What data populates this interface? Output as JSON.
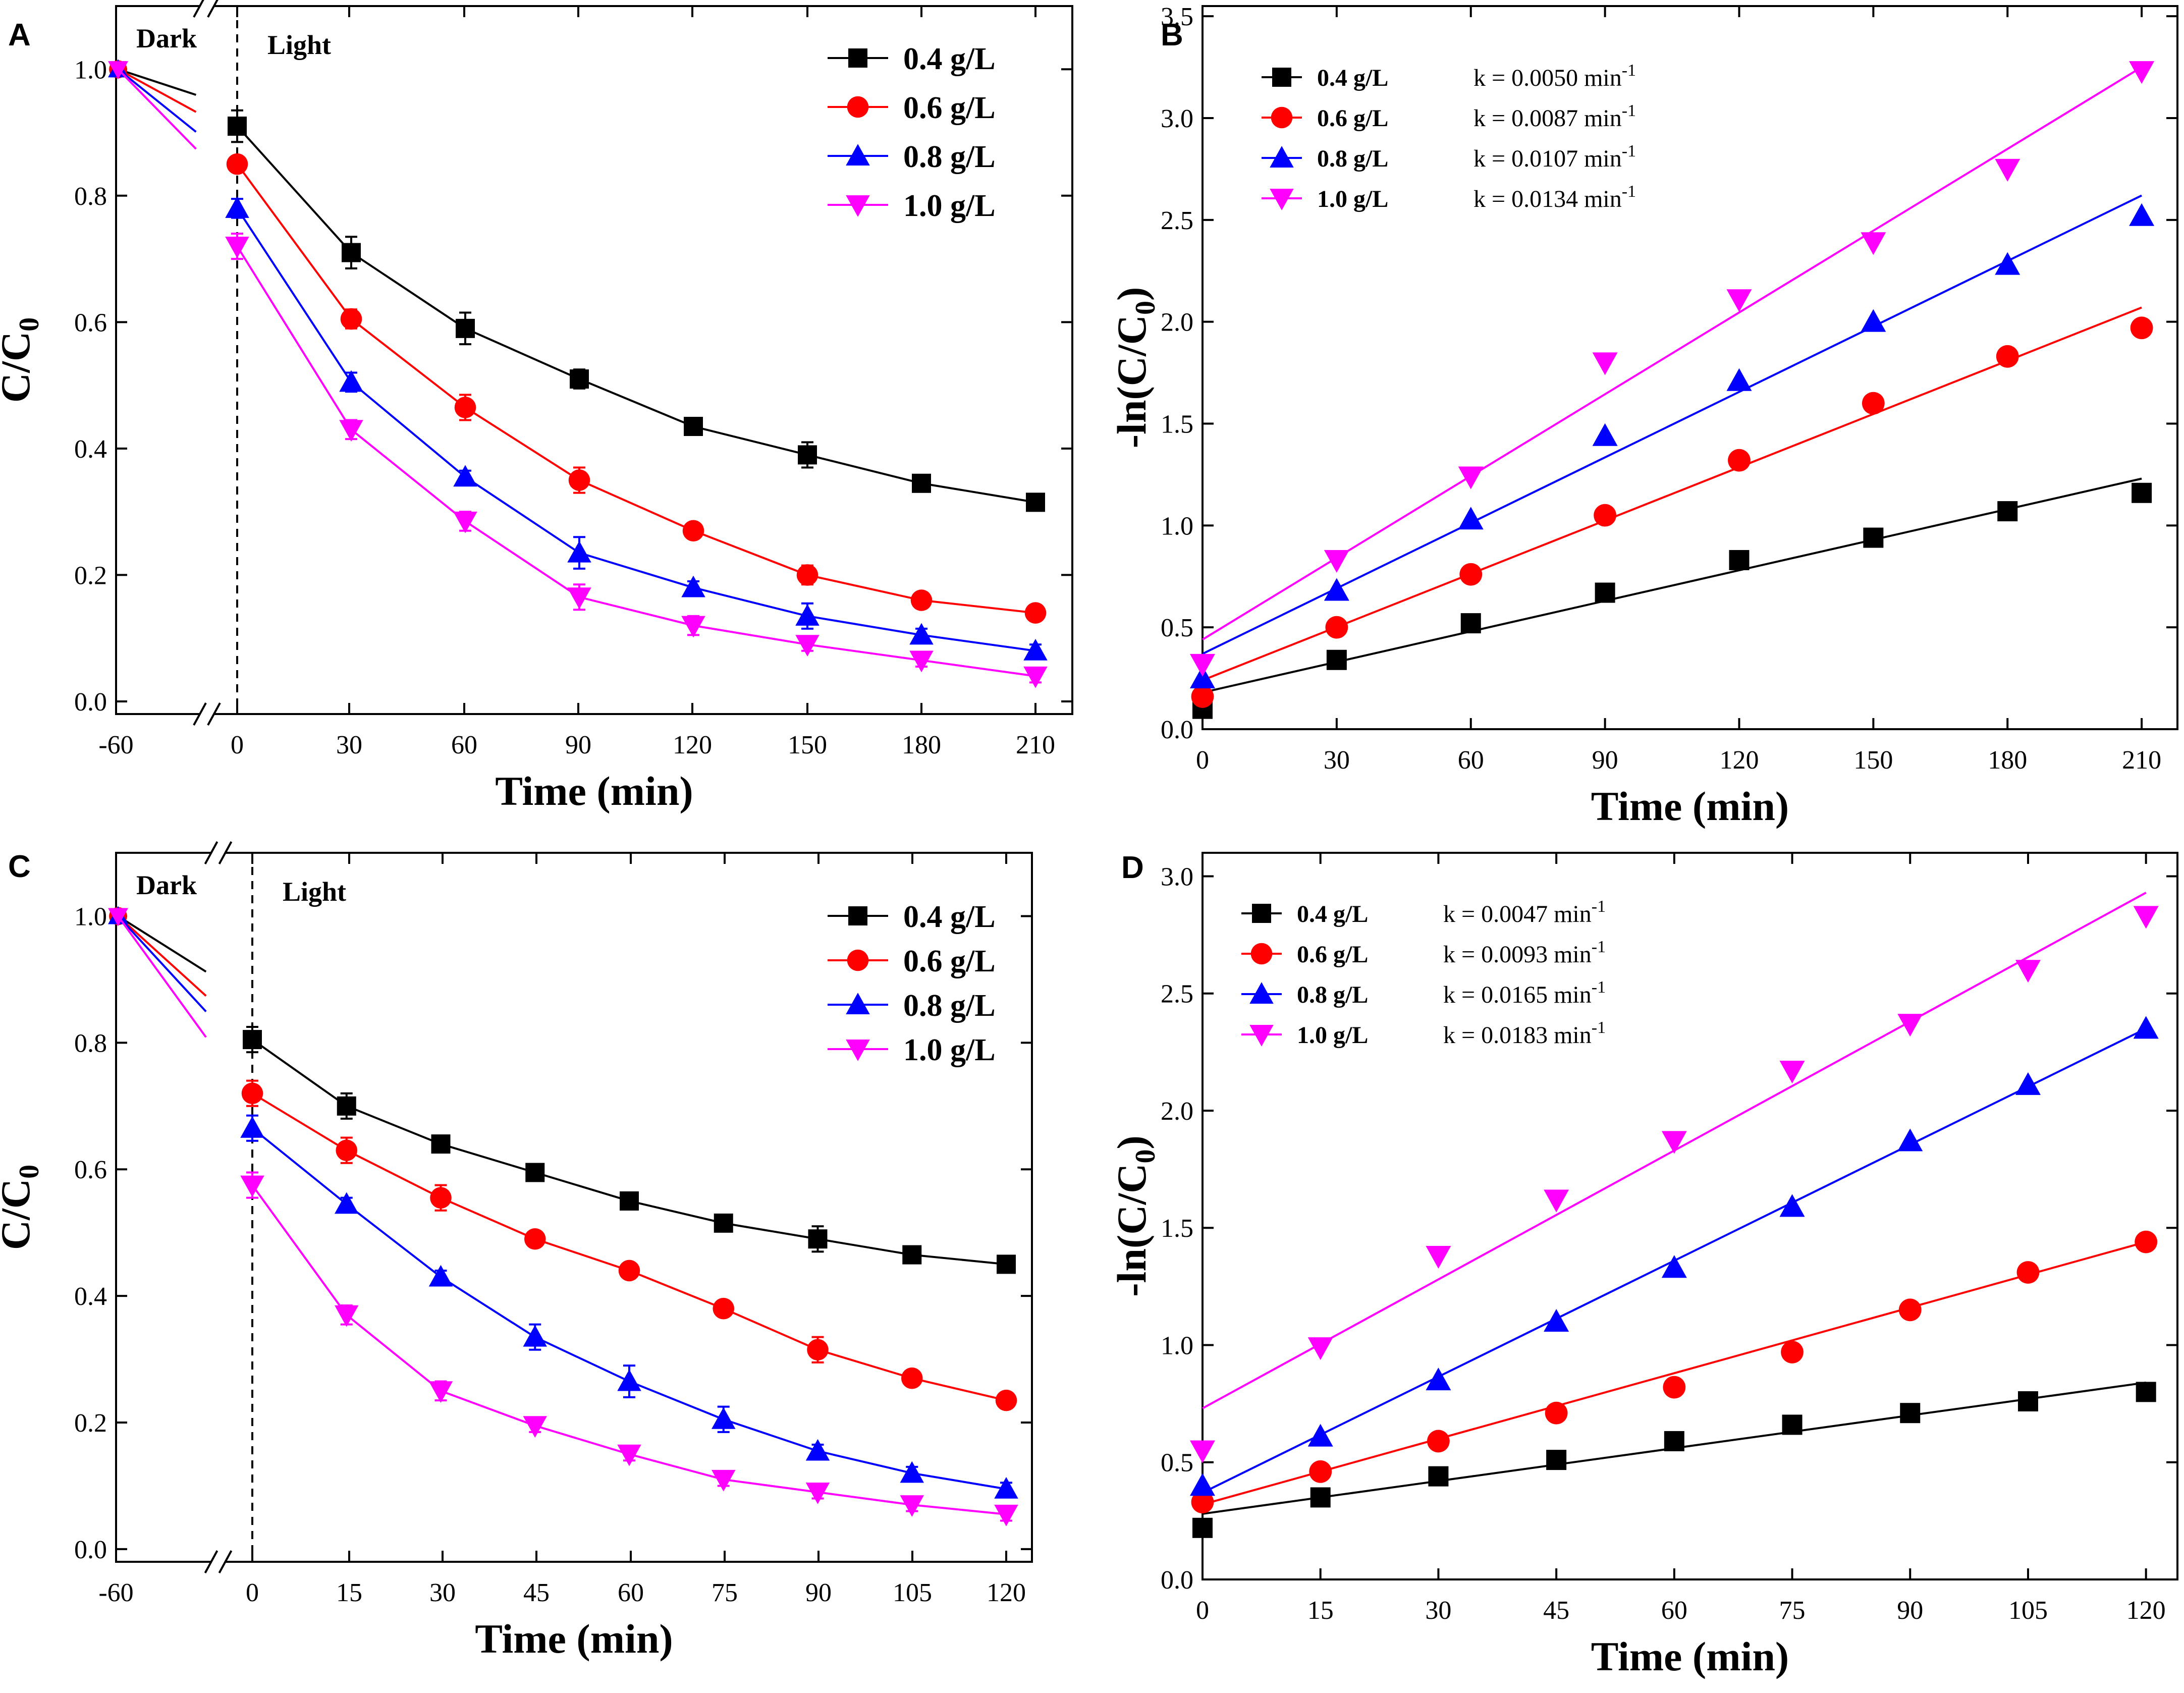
{
  "chart_data": [
    {
      "panel": "A",
      "type": "line",
      "title": "",
      "xlabel": "Time (min)",
      "ylabel": "C/C0",
      "ylabel_main": "C/C",
      "ylabel_sub": "0",
      "phase_labels": [
        "Dark",
        "Light"
      ],
      "x_ticks": [
        "-60",
        "0",
        "30",
        "60",
        "90",
        "120",
        "150",
        "180",
        "210"
      ],
      "y_ticks": [
        "0.0",
        "0.2",
        "0.4",
        "0.6",
        "0.8",
        "1.0"
      ],
      "xlim": [
        0,
        210
      ],
      "ylim": [
        -0.02,
        1.1
      ],
      "x_break": true,
      "x": [
        0,
        30,
        60,
        90,
        120,
        150,
        180,
        210
      ],
      "series": [
        {
          "name": "0.4 g/L",
          "color": "#000000",
          "marker": "square",
          "start": 1.0,
          "values": [
            0.91,
            0.71,
            0.59,
            0.51,
            0.435,
            0.39,
            0.345,
            0.315
          ],
          "errors": [
            0.025,
            0.025,
            0.025,
            0.015,
            0.01,
            0.02,
            0.01,
            0.01
          ]
        },
        {
          "name": "0.6 g/L",
          "color": "#ff0000",
          "marker": "circle",
          "start": 1.0,
          "values": [
            0.85,
            0.605,
            0.465,
            0.35,
            0.27,
            0.2,
            0.16,
            0.14
          ],
          "errors": [
            0.01,
            0.015,
            0.02,
            0.02,
            0.01,
            0.015,
            0.01,
            0.01
          ]
        },
        {
          "name": "0.8 g/L",
          "color": "#0000ff",
          "marker": "triangle-up",
          "start": 1.0,
          "values": [
            0.78,
            0.505,
            0.355,
            0.235,
            0.18,
            0.135,
            0.105,
            0.08
          ],
          "errors": [
            0.015,
            0.015,
            0.01,
            0.025,
            0.01,
            0.02,
            0.01,
            0.01
          ]
        },
        {
          "name": "1.0 g/L",
          "color": "#ff00ff",
          "marker": "triangle-down",
          "start": 1.0,
          "values": [
            0.72,
            0.43,
            0.285,
            0.165,
            0.12,
            0.09,
            0.065,
            0.04
          ],
          "errors": [
            0.02,
            0.015,
            0.015,
            0.02,
            0.015,
            0.01,
            0.01,
            0.01
          ]
        }
      ]
    },
    {
      "panel": "B",
      "type": "scatter",
      "title": "",
      "xlabel": "Time (min)",
      "ylabel": "-ln(C/C0)",
      "ylabel_main": "-ln(C/C",
      "ylabel_sub": "0",
      "ylabel_tail": ")",
      "x_ticks": [
        "0",
        "30",
        "60",
        "90",
        "120",
        "150",
        "180",
        "210"
      ],
      "y_ticks": [
        "0.0",
        "0.5",
        "1.0",
        "1.5",
        "2.0",
        "2.5",
        "3.0",
        "3.5"
      ],
      "xlim": [
        0,
        218
      ],
      "ylim": [
        0,
        3.55
      ],
      "x": [
        0,
        30,
        60,
        90,
        120,
        150,
        180,
        210
      ],
      "series": [
        {
          "name": "0.4 g/L",
          "k_label": "k = 0.0050 min",
          "k_sup": "-1",
          "color": "#000000",
          "marker": "square",
          "values": [
            0.1,
            0.34,
            0.52,
            0.67,
            0.83,
            0.94,
            1.07,
            1.16
          ],
          "fit": [
            0.18,
            1.23
          ]
        },
        {
          "name": "0.6 g/L",
          "k_label": "k = 0.0087 min",
          "k_sup": "-1",
          "color": "#ff0000",
          "marker": "circle",
          "values": [
            0.16,
            0.5,
            0.76,
            1.05,
            1.32,
            1.6,
            1.83,
            1.97
          ],
          "fit": [
            0.24,
            2.07
          ]
        },
        {
          "name": "0.8 g/L",
          "k_label": "k = 0.0107 min",
          "k_sup": "-1",
          "color": "#0000ff",
          "marker": "triangle-up",
          "values": [
            0.25,
            0.68,
            1.03,
            1.44,
            1.71,
            2.0,
            2.28,
            2.52
          ],
          "fit": [
            0.37,
            2.62
          ]
        },
        {
          "name": "1.0 g/L",
          "k_label": "k = 0.0134 min",
          "k_sup": "-1",
          "color": "#ff00ff",
          "marker": "triangle-down",
          "values": [
            0.32,
            0.83,
            1.24,
            1.8,
            2.11,
            2.39,
            2.75,
            3.23
          ],
          "fit": [
            0.44,
            3.25
          ]
        }
      ]
    },
    {
      "panel": "C",
      "type": "line",
      "title": "",
      "xlabel": "Time (min)",
      "ylabel": "C/C0",
      "ylabel_main": "C/C",
      "ylabel_sub": "0",
      "phase_labels": [
        "Dark",
        "Light"
      ],
      "x_ticks": [
        "-60",
        "0",
        "15",
        "30",
        "45",
        "60",
        "75",
        "90",
        "105",
        "120"
      ],
      "y_ticks": [
        "0.0",
        "0.2",
        "0.4",
        "0.6",
        "0.8",
        "1.0"
      ],
      "xlim": [
        0,
        120
      ],
      "ylim": [
        -0.02,
        1.1
      ],
      "x_break": true,
      "x": [
        0,
        15,
        30,
        45,
        60,
        75,
        90,
        105,
        120
      ],
      "series": [
        {
          "name": "0.4 g/L",
          "color": "#000000",
          "marker": "square",
          "start": 1.0,
          "values": [
            0.805,
            0.7,
            0.64,
            0.595,
            0.55,
            0.515,
            0.49,
            0.465,
            0.45
          ],
          "errors": [
            0.02,
            0.02,
            0.01,
            0.01,
            0.01,
            0.01,
            0.02,
            0.01,
            0.01
          ]
        },
        {
          "name": "0.6 g/L",
          "color": "#ff0000",
          "marker": "circle",
          "start": 1.0,
          "values": [
            0.72,
            0.63,
            0.555,
            0.49,
            0.44,
            0.38,
            0.315,
            0.27,
            0.235
          ],
          "errors": [
            0.02,
            0.02,
            0.02,
            0.01,
            0.01,
            0.01,
            0.02,
            0.01,
            0.01
          ]
        },
        {
          "name": "0.8 g/L",
          "color": "#0000ff",
          "marker": "triangle-up",
          "start": 1.0,
          "values": [
            0.665,
            0.545,
            0.43,
            0.335,
            0.265,
            0.205,
            0.155,
            0.12,
            0.095
          ],
          "errors": [
            0.02,
            0.01,
            0.01,
            0.02,
            0.025,
            0.02,
            0.01,
            0.01,
            0.01
          ]
        },
        {
          "name": "1.0 g/L",
          "color": "#ff00ff",
          "marker": "triangle-down",
          "start": 1.0,
          "values": [
            0.575,
            0.37,
            0.25,
            0.195,
            0.15,
            0.11,
            0.09,
            0.07,
            0.055
          ],
          "errors": [
            0.02,
            0.015,
            0.015,
            0.01,
            0.01,
            0.01,
            0.01,
            0.01,
            0.01
          ]
        }
      ]
    },
    {
      "panel": "D",
      "type": "scatter",
      "title": "",
      "xlabel": "Time (min)",
      "ylabel": "-ln(C/C0)",
      "ylabel_main": "-ln(C/C",
      "ylabel_sub": "0",
      "ylabel_tail": ")",
      "x_ticks": [
        "0",
        "15",
        "30",
        "45",
        "60",
        "75",
        "90",
        "105",
        "120"
      ],
      "y_ticks": [
        "0.0",
        "0.5",
        "1.0",
        "1.5",
        "2.0",
        "2.5",
        "3.0"
      ],
      "xlim": [
        0,
        124
      ],
      "ylim": [
        0,
        3.1
      ],
      "x": [
        0,
        15,
        30,
        45,
        60,
        75,
        90,
        105,
        120
      ],
      "series": [
        {
          "name": "0.4 g/L",
          "k_label": "k = 0.0047 min",
          "k_sup": "-1",
          "color": "#000000",
          "marker": "square",
          "values": [
            0.22,
            0.35,
            0.44,
            0.51,
            0.59,
            0.66,
            0.71,
            0.76,
            0.8
          ],
          "fit": [
            0.28,
            0.84
          ]
        },
        {
          "name": "0.6 g/L",
          "k_label": "k = 0.0093 min",
          "k_sup": "-1",
          "color": "#ff0000",
          "marker": "circle",
          "values": [
            0.33,
            0.46,
            0.59,
            0.71,
            0.82,
            0.97,
            1.15,
            1.31,
            1.44
          ],
          "fit": [
            0.32,
            1.44
          ]
        },
        {
          "name": "0.8 g/L",
          "k_label": "k = 0.0165 min",
          "k_sup": "-1",
          "color": "#0000ff",
          "marker": "triangle-up",
          "values": [
            0.4,
            0.61,
            0.85,
            1.1,
            1.33,
            1.59,
            1.87,
            2.11,
            2.35
          ],
          "fit": [
            0.37,
            2.35
          ]
        },
        {
          "name": "1.0 g/L",
          "k_label": "k = 0.0183 min",
          "k_sup": "-1",
          "color": "#ff00ff",
          "marker": "triangle-down",
          "values": [
            0.55,
            0.99,
            1.38,
            1.62,
            1.87,
            2.17,
            2.37,
            2.6,
            2.83
          ],
          "fit": [
            0.73,
            2.93
          ]
        }
      ]
    }
  ]
}
